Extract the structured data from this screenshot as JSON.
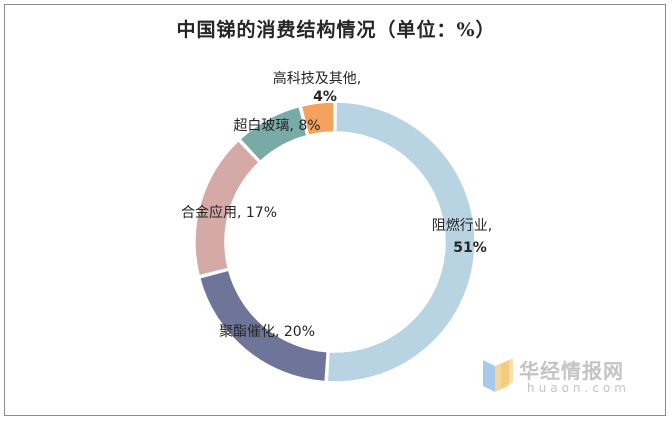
{
  "chart_data": {
    "type": "pie",
    "title": "中国锑的消费结构情况（单位：%）",
    "slices": [
      {
        "name": "阻燃行业",
        "value": 51,
        "color": "#b8d3e2"
      },
      {
        "name": "聚酯催化",
        "value": 20,
        "color": "#6e7599"
      },
      {
        "name": "合金应用",
        "value": 17,
        "color": "#d4a9a6"
      },
      {
        "name": "超白玻璃",
        "value": 8,
        "color": "#78aba7"
      },
      {
        "name": "高科技及其他",
        "value": 4,
        "color": "#f3a35c"
      }
    ],
    "labels": [
      {
        "line1": "阻燃行业,",
        "line2": "51%"
      },
      {
        "line1": "聚酯催化, 20%",
        "line2": ""
      },
      {
        "line1": "合金应用, 17%",
        "line2": ""
      },
      {
        "line1": "超白玻璃, 8%",
        "line2": ""
      },
      {
        "line1": "高科技及其他,",
        "line2": "4%"
      }
    ]
  },
  "watermark": {
    "brand": "华经情报网",
    "site": "huaon.com"
  }
}
